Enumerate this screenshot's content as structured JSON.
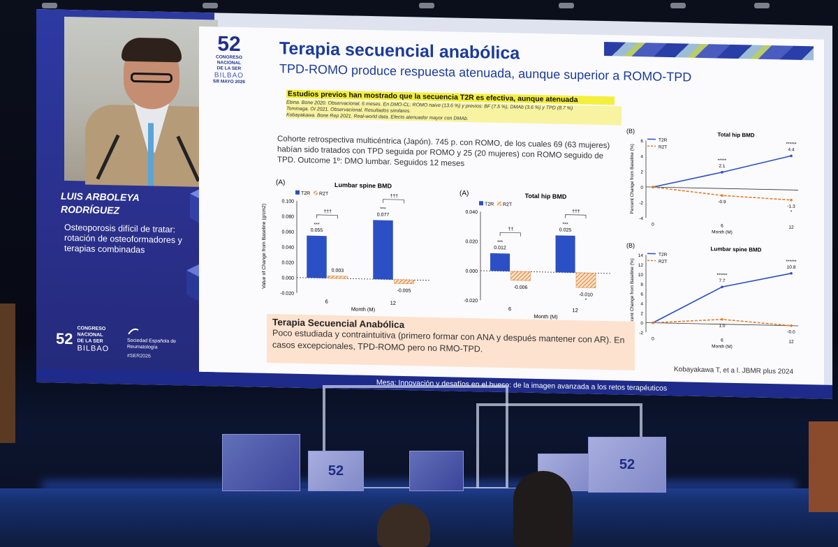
{
  "left_panel": {
    "speaker_name_line1": "LUIS ARBOLEYA",
    "speaker_name_line2": "RODRÍGUEZ",
    "topic": "Osteoporosis difícil de tratar: rotación de osteoformadores y terapias combinadas",
    "congress_number": "52",
    "congress_label_1": "CONGRESO",
    "congress_label_2": "NACIONAL",
    "congress_label_3": "DE LA SER",
    "city": "BILBAO",
    "society_line1": "Sociedad Española de",
    "society_line2": "Reumatología",
    "hashtag": "#SER2026"
  },
  "slide": {
    "logo_number": "52",
    "logo_line1": "CONGRESO",
    "logo_line2": "NACIONAL",
    "logo_line3": "DE LA SER",
    "logo_city": "BILBAO",
    "logo_dates": "5/8 MAYO 2026",
    "title": "Terapia secuencial anabólica",
    "subtitle": "TPD-ROMO produce respuesta atenuada, aunque superior a ROMO-TPD",
    "highlight_line1": "Estudios previos han mostrado que la secuencia T2R es efectiva, aunque atenuada",
    "refs_line1": "Ebina. Bone 2020. Observacional. 6 meses. En DMO-CL: ROMO naive (13.6 %) y previos: BF (7.5 %), DMAb (3.6 %) y TPD (8.7 %)",
    "refs_line2": "Tominaga. OI 2021. Observacional. Resultados similares.",
    "refs_line3": "Kobayakawa. Bone Rep 2021. Real-world data. Efecto atenuador mayor con DMAb.",
    "cohort_text": "Cohorte retrospectiva multicéntrica (Japón). 745 p. con ROMO, de los cuales 69 (63 mujeres) habían sido tratados con TPD seguida por ROMO y 25 (20 mujeres) con ROMO seguido de TPD. Outcome 1º: DMO lumbar. Seguidos 12 meses",
    "summary_title": "Terapia Secuencial Anabólica",
    "summary_body": "Poco estudiada y contraintuitiva (primero formar con ANA y después mantener con AR). En casos excepcionales, TPD-ROMO pero no RMO-TPD.",
    "citation": "Kobayakawa T, et a l. JBMR plus 2024",
    "footer": "Mesa: Innovación y desafíos en el hueso: de la imagen avanzada a los retos terapéuticos"
  },
  "colors": {
    "t2r": "#2b4fc4",
    "r2t": "#e07b2c",
    "title_blue": "#1b3b9a",
    "panel_blue": "#2c3aa3"
  },
  "chart_data": [
    {
      "type": "bar",
      "panel": "(A)",
      "title": "Lumbar spine BMD",
      "ylabel": "Value of Change from Baseline (g/cm2)",
      "xlabel": "Month (M)",
      "categories": [
        "6",
        "12"
      ],
      "ylim": [
        -0.02,
        0.1
      ],
      "yticks": [
        "0.100",
        "0.080",
        "0.060",
        "0.040",
        "0.020",
        "0.000",
        "-0.020"
      ],
      "series": [
        {
          "name": "T2R",
          "values": [
            0.055,
            0.077
          ],
          "labels": [
            "0.055",
            "0.077"
          ],
          "marks": [
            "***",
            "***"
          ]
        },
        {
          "name": "R2T",
          "values": [
            0.003,
            -0.005
          ],
          "labels": [
            "0.003",
            "-0.005"
          ]
        }
      ],
      "significance": [
        "†††",
        "†††"
      ]
    },
    {
      "type": "bar",
      "panel": "(A)",
      "title": "Total hip BMD",
      "xlabel": "Month (M)",
      "categories": [
        "6",
        "12"
      ],
      "ylim": [
        -0.02,
        0.04
      ],
      "yticks": [
        "0.040",
        "0.020",
        "0.000",
        "-0.020"
      ],
      "series": [
        {
          "name": "T2R",
          "values": [
            0.012,
            0.025
          ],
          "labels": [
            "0.012",
            "0.025"
          ],
          "marks": [
            "***",
            "***"
          ]
        },
        {
          "name": "R2T",
          "values": [
            -0.006,
            -0.01
          ],
          "labels": [
            "-0.006",
            "-0.010"
          ],
          "marks": [
            "",
            "*"
          ]
        }
      ],
      "significance": [
        "††",
        "†††"
      ]
    },
    {
      "type": "line",
      "panel": "(B)",
      "title": "Total hip BMD",
      "ylabel": "Percent Change from Baseline (%)",
      "xlabel": "Month (M)",
      "x": [
        "0",
        "6",
        "12"
      ],
      "ylim": [
        -4,
        6
      ],
      "yticks": [
        "6",
        "4",
        "2",
        "0",
        "-2",
        "-4"
      ],
      "series": [
        {
          "name": "T2R",
          "values": [
            0,
            2.1,
            4.4
          ],
          "labels": [
            "",
            "2.1",
            "4.4"
          ],
          "marks": [
            "",
            "*****",
            "******"
          ]
        },
        {
          "name": "R2T",
          "values": [
            0,
            -0.9,
            -1.3
          ],
          "labels": [
            "",
            "-0.9",
            "-1.3"
          ],
          "marks": [
            "",
            "",
            "*"
          ]
        }
      ]
    },
    {
      "type": "line",
      "panel": "(B)",
      "title": "Lumbar spine BMD",
      "ylabel": "Percent Change from Baseline (%)",
      "xlabel": "Month (M)",
      "x": [
        "0",
        "6",
        "12"
      ],
      "ylim": [
        -2,
        14
      ],
      "yticks": [
        "14",
        "12",
        "10",
        "8",
        "6",
        "4",
        "2",
        "0",
        "-2"
      ],
      "series": [
        {
          "name": "T2R",
          "values": [
            0,
            7.7,
            10.8
          ],
          "labels": [
            "",
            "7.7",
            "10.8"
          ],
          "marks": [
            "",
            "******",
            "******"
          ]
        },
        {
          "name": "R2T",
          "values": [
            0,
            1.0,
            -0.0
          ],
          "labels": [
            "",
            "1.0",
            "-0.0"
          ]
        }
      ]
    }
  ]
}
